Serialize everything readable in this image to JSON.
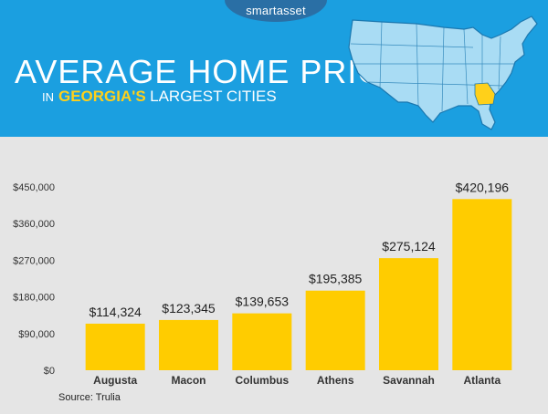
{
  "brand": "smartasset",
  "header": {
    "title": "AVERAGE HOME PRICE",
    "subtitle_prefix": "IN",
    "subtitle_highlight": "GEORGIA'S",
    "subtitle_rest": "LARGEST CITIES"
  },
  "colors": {
    "banner": "#1b9fe0",
    "bar": "#ffcc00",
    "map_fill": "#a9dcf4",
    "map_highlight": "#ffd01a"
  },
  "chart_data": {
    "type": "bar",
    "categories": [
      "Augusta",
      "Macon",
      "Columbus",
      "Athens",
      "Savannah",
      "Atlanta"
    ],
    "values": [
      114324,
      123345,
      139653,
      195385,
      275124,
      420196
    ],
    "value_labels": [
      "$114,324",
      "$123,345",
      "$139,653",
      "$195,385",
      "$275,124",
      "$420,196"
    ],
    "yticks": [
      0,
      90000,
      180000,
      270000,
      360000,
      450000
    ],
    "ytick_labels": [
      "$0",
      "$90,000",
      "$180,000",
      "$270,000",
      "$360,000",
      "$450,000"
    ],
    "ylim": [
      0,
      450000
    ],
    "grid": false,
    "legend": "none",
    "source": "Source: Trulia"
  }
}
